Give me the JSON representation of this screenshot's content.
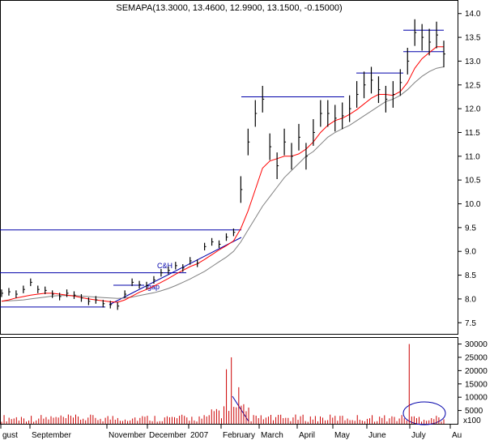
{
  "chart_data": [
    {
      "type": "line",
      "title": "SEMAPA(13.3000, 13.4600, 12.9900, 13.1500, -0.15000)",
      "ylim": [
        7.3,
        14.2
      ],
      "y_ticks": [
        "7.5",
        "8.0",
        "8.5",
        "9.0",
        "9.5",
        "10.0",
        "10.5",
        "11.0",
        "11.5",
        "12.0",
        "12.5",
        "13.0",
        "13.5",
        "14.0"
      ],
      "x_ticks": [
        "gust",
        "September",
        "November",
        "December",
        "2007",
        "February",
        "March",
        "April",
        "May",
        "June",
        "July",
        "Au"
      ],
      "grid": false,
      "colors": {
        "price": "#000000",
        "ma_short": "#ff0000",
        "ma_long": "#808080",
        "annotation": "#0000aa"
      },
      "price_range": {
        "start": 8.15,
        "end": 13.15,
        "min": 7.85,
        "max": 13.7
      },
      "series": [
        {
          "kind": "price-bars",
          "values": [
            8.12,
            8.15,
            8.1,
            8.2,
            8.35,
            8.2,
            8.18,
            8.1,
            8.05,
            8.12,
            8.08,
            8.02,
            7.95,
            7.98,
            7.9,
            7.88,
            7.85,
            8.1,
            8.35,
            8.3,
            8.28,
            8.4,
            8.55,
            8.6,
            8.7,
            8.65,
            8.8,
            8.75,
            9.1,
            9.2,
            9.15,
            9.3,
            9.4,
            10.3,
            11.3,
            11.9,
            12.2,
            11.2,
            10.8,
            11.3,
            11.0,
            11.4,
            11.0,
            11.5,
            11.9,
            11.9,
            11.8,
            11.85,
            12.0,
            12.3,
            12.5,
            12.6,
            12.4,
            12.2,
            12.3,
            12.55,
            13.0,
            13.6,
            13.5,
            13.4,
            13.55,
            13.15
          ]
        },
        {
          "kind": "moving-average-short",
          "values": [
            7.95,
            7.98,
            8.02,
            8.05,
            8.08,
            8.1,
            8.12,
            8.12,
            8.1,
            8.08,
            8.06,
            8.03,
            8.0,
            7.98,
            7.96,
            7.94,
            7.93,
            7.98,
            8.06,
            8.14,
            8.2,
            8.27,
            8.35,
            8.43,
            8.52,
            8.6,
            8.68,
            8.74,
            8.83,
            8.93,
            9.03,
            9.12,
            9.22,
            9.48,
            9.85,
            10.3,
            10.75,
            10.9,
            10.95,
            11.0,
            11.0,
            11.05,
            11.15,
            11.3,
            11.5,
            11.65,
            11.75,
            11.8,
            11.88,
            11.98,
            12.1,
            12.22,
            12.3,
            12.3,
            12.28,
            12.36,
            12.55,
            12.85,
            13.05,
            13.18,
            13.3,
            13.3
          ]
        },
        {
          "kind": "moving-average-long",
          "values": [
            7.95,
            7.96,
            7.97,
            7.98,
            8.0,
            8.02,
            8.04,
            8.06,
            8.07,
            8.07,
            8.07,
            8.06,
            8.05,
            8.04,
            8.03,
            8.02,
            8.01,
            8.02,
            8.04,
            8.07,
            8.1,
            8.13,
            8.17,
            8.22,
            8.28,
            8.35,
            8.42,
            8.5,
            8.58,
            8.68,
            8.78,
            8.88,
            9.0,
            9.2,
            9.45,
            9.7,
            9.95,
            10.15,
            10.35,
            10.55,
            10.7,
            10.85,
            11.0,
            11.1,
            11.25,
            11.4,
            11.5,
            11.58,
            11.65,
            11.75,
            11.85,
            11.95,
            12.05,
            12.15,
            12.2,
            12.28,
            12.4,
            12.55,
            12.68,
            12.78,
            12.85,
            12.88
          ]
        }
      ],
      "annotations": [
        "C&H",
        "gap"
      ],
      "horizontal_levels": [
        12.25,
        12.75,
        13.2,
        13.65,
        9.45,
        8.55,
        7.83
      ]
    },
    {
      "type": "bar",
      "title": "",
      "ylim": [
        0,
        32000
      ],
      "y_ticks": [
        "5000",
        "10000",
        "15000",
        "20000",
        "25000",
        "30000"
      ],
      "unit_label": "x100",
      "volume_summary": {
        "peak_february": 25000,
        "peak_july": 30000,
        "typical": 2500
      }
    }
  ]
}
